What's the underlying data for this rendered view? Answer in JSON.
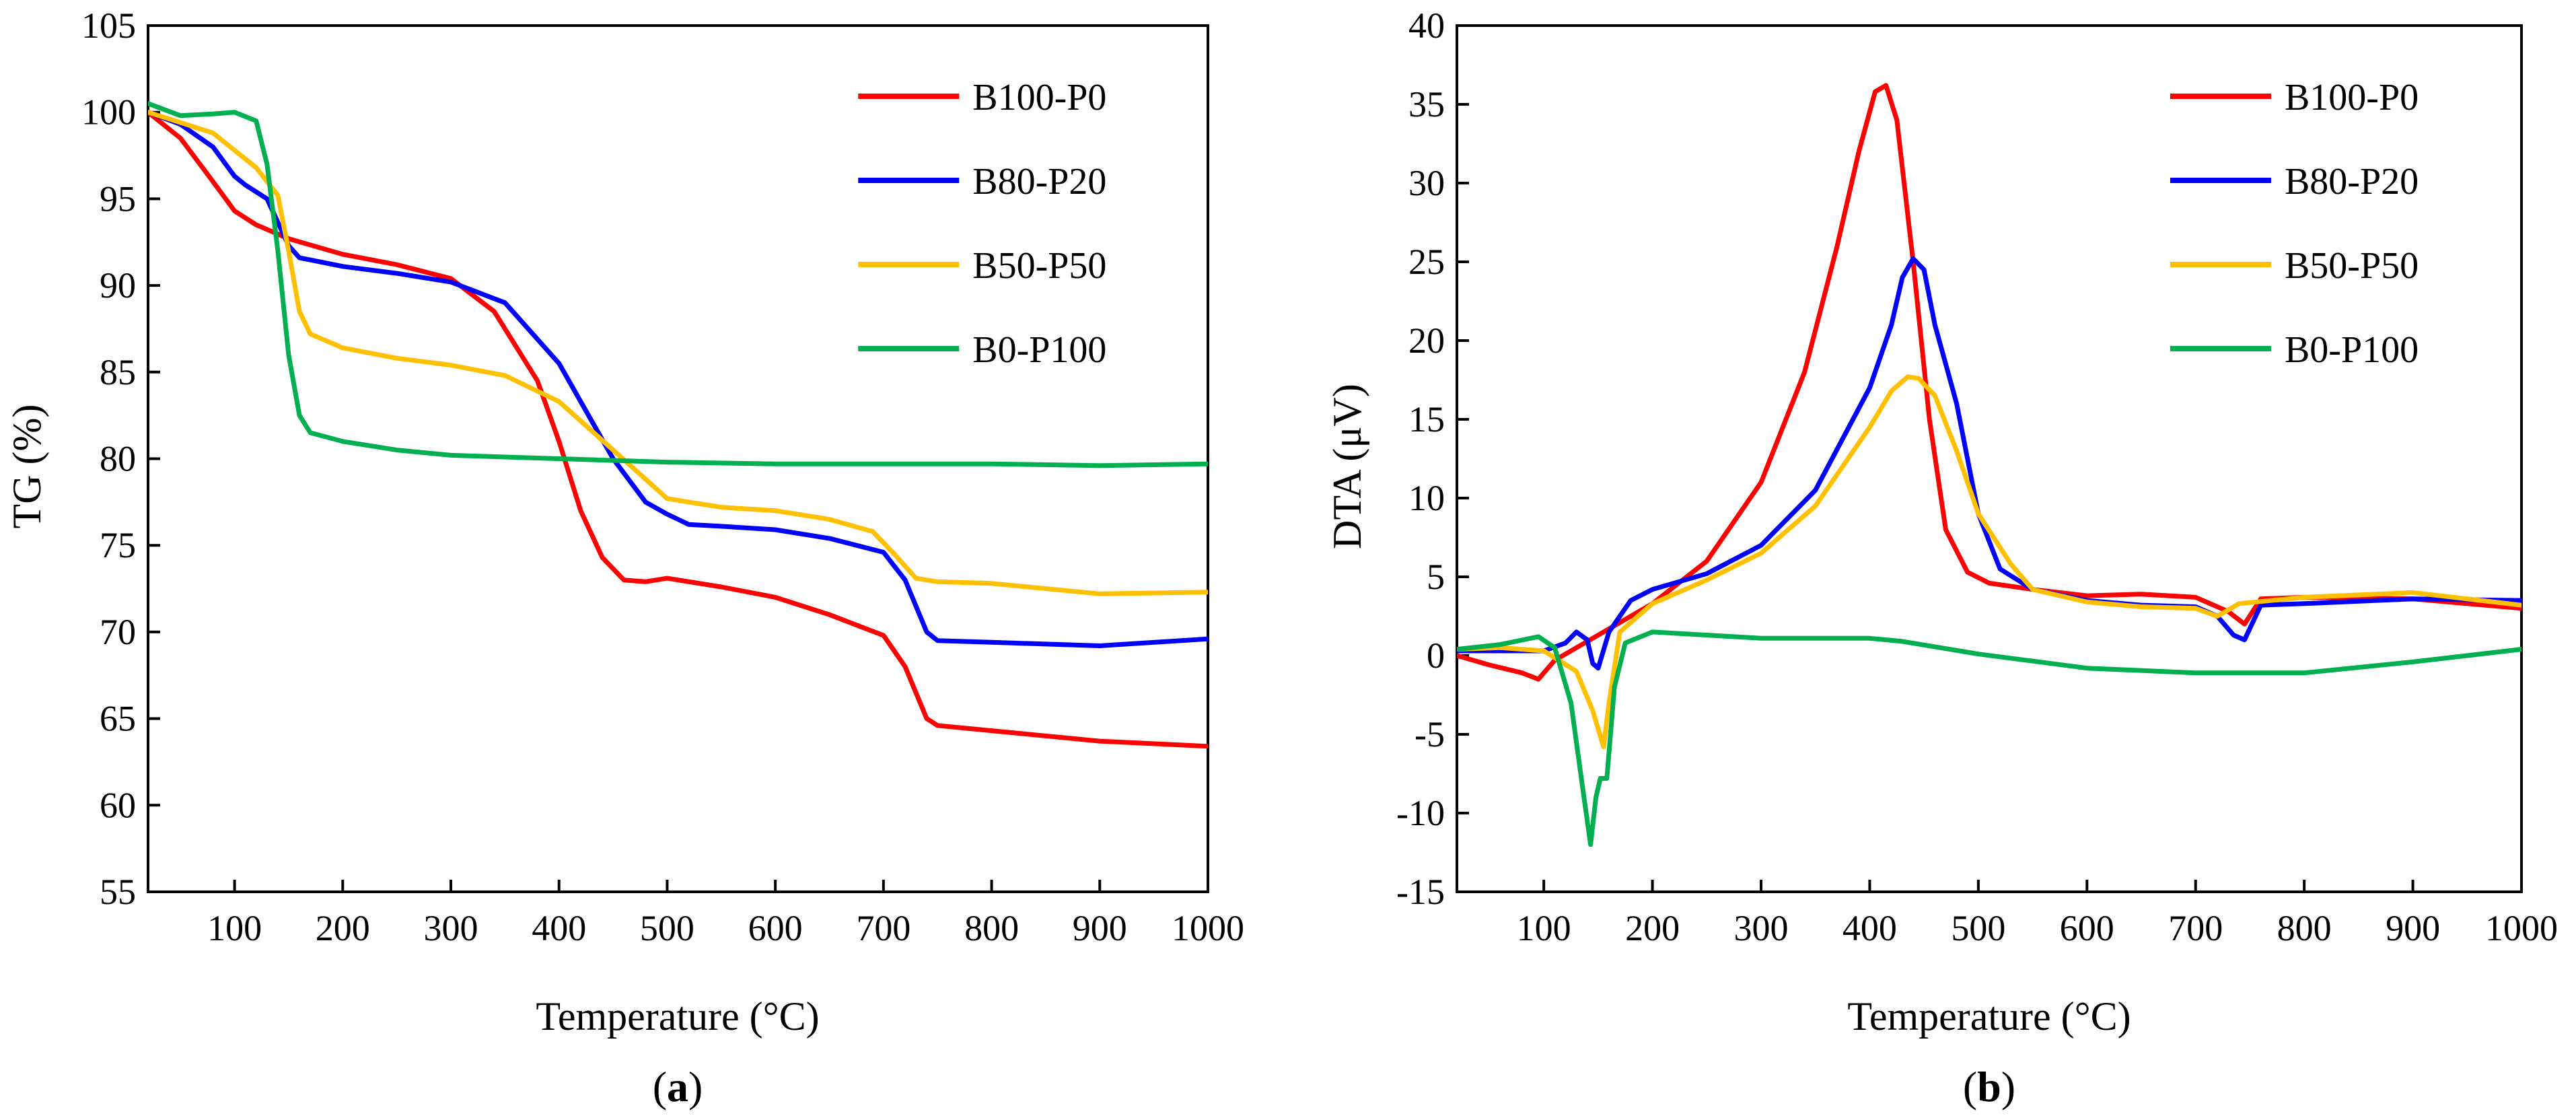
{
  "figure": {
    "panels": [
      {
        "label_open": "(",
        "label_letter": "a",
        "label_close": ")"
      },
      {
        "label_open": "(",
        "label_letter": "b",
        "label_close": ")"
      }
    ]
  },
  "chart_data": [
    {
      "type": "line",
      "title": "",
      "xlabel": "Temperature (°C)",
      "ylabel": "TG (%)",
      "xlim": [
        20,
        1000
      ],
      "ylim": [
        55,
        105
      ],
      "xticks": [
        100,
        200,
        300,
        400,
        500,
        600,
        700,
        800,
        900,
        1000
      ],
      "yticks": [
        55,
        60,
        65,
        70,
        75,
        80,
        85,
        90,
        95,
        100,
        105
      ],
      "grid": false,
      "legend_position": "top-right",
      "series": [
        {
          "name": "B100-P0",
          "color": "#ff0000",
          "x": [
            20,
            50,
            80,
            100,
            120,
            150,
            200,
            250,
            300,
            340,
            380,
            400,
            420,
            440,
            460,
            480,
            500,
            550,
            600,
            650,
            700,
            720,
            740,
            750,
            800,
            900,
            1000
          ],
          "y": [
            100,
            98.5,
            96,
            94.3,
            93.5,
            92.7,
            91.8,
            91.2,
            90.4,
            88.5,
            84.5,
            81,
            77,
            74.3,
            73,
            72.9,
            73.1,
            72.6,
            72,
            71,
            69.8,
            68,
            65,
            64.6,
            64.3,
            63.7,
            63.4
          ]
        },
        {
          "name": "B80-P20",
          "color": "#0000ff",
          "x": [
            20,
            50,
            80,
            100,
            110,
            130,
            150,
            160,
            200,
            250,
            300,
            350,
            400,
            450,
            480,
            500,
            520,
            550,
            600,
            650,
            700,
            720,
            740,
            750,
            800,
            900,
            1000
          ],
          "y": [
            100,
            99.3,
            98,
            96.3,
            95.8,
            95,
            92.3,
            91.6,
            91.1,
            90.7,
            90.2,
            89,
            85.5,
            80,
            77.5,
            76.8,
            76.2,
            76.1,
            75.9,
            75.4,
            74.6,
            73,
            70,
            69.5,
            69.4,
            69.2,
            69.6
          ]
        },
        {
          "name": "B50-P50",
          "color": "#ffc000",
          "x": [
            20,
            50,
            80,
            100,
            120,
            140,
            150,
            160,
            170,
            200,
            250,
            300,
            350,
            400,
            450,
            500,
            550,
            600,
            650,
            690,
            710,
            730,
            750,
            800,
            900,
            1000
          ],
          "y": [
            100,
            99.4,
            98.8,
            97.8,
            96.8,
            95.2,
            92,
            88.5,
            87.2,
            86.4,
            85.8,
            85.4,
            84.8,
            83.3,
            80.5,
            77.7,
            77.2,
            77,
            76.5,
            75.8,
            74.5,
            73.1,
            72.9,
            72.8,
            72.2,
            72.3
          ]
        },
        {
          "name": "B0-P100",
          "color": "#00b050",
          "x": [
            20,
            50,
            80,
            100,
            120,
            130,
            140,
            150,
            160,
            170,
            200,
            250,
            300,
            400,
            500,
            600,
            700,
            800,
            900,
            1000
          ],
          "y": [
            100.5,
            99.8,
            99.9,
            100,
            99.5,
            97,
            92,
            86,
            82.5,
            81.5,
            81,
            80.5,
            80.2,
            80,
            79.8,
            79.7,
            79.7,
            79.7,
            79.6,
            79.7
          ]
        }
      ],
      "legend": [
        "B100-P0",
        "B80-P20",
        "B50-P50",
        "B0-P100"
      ]
    },
    {
      "type": "line",
      "title": "",
      "xlabel": "Temperature (°C)",
      "ylabel": "DTA (μV)",
      "xlim": [
        20,
        1000
      ],
      "ylim": [
        -15,
        40
      ],
      "xticks": [
        100,
        200,
        300,
        400,
        500,
        600,
        700,
        800,
        900,
        1000
      ],
      "yticks": [
        -15,
        -10,
        -5,
        0,
        5,
        10,
        15,
        20,
        25,
        30,
        35,
        40
      ],
      "grid": false,
      "legend_position": "top-right",
      "series": [
        {
          "name": "B100-P0",
          "color": "#ff0000",
          "x": [
            20,
            50,
            80,
            95,
            110,
            150,
            200,
            250,
            300,
            340,
            370,
            390,
            405,
            415,
            425,
            440,
            455,
            470,
            490,
            510,
            550,
            600,
            650,
            700,
            730,
            745,
            760,
            800,
            900,
            1000
          ],
          "y": [
            0,
            -0.6,
            -1.1,
            -1.5,
            -0.3,
            1.3,
            3.3,
            6,
            11,
            18,
            26,
            32,
            35.8,
            36.2,
            34,
            25,
            15,
            8,
            5.3,
            4.6,
            4.2,
            3.8,
            3.9,
            3.7,
            2.8,
            2,
            3.6,
            3.7,
            3.6,
            3
          ]
        },
        {
          "name": "B80-P20",
          "color": "#0000ff",
          "x": [
            20,
            60,
            100,
            120,
            130,
            140,
            145,
            150,
            160,
            180,
            200,
            250,
            300,
            350,
            400,
            420,
            430,
            440,
            450,
            460,
            480,
            500,
            520,
            550,
            600,
            650,
            700,
            720,
            735,
            745,
            760,
            800,
            900,
            1000
          ],
          "y": [
            0.3,
            0.3,
            0.3,
            0.8,
            1.5,
            1,
            -0.5,
            -0.8,
            1.5,
            3.5,
            4.2,
            5.2,
            7,
            10.5,
            17,
            21,
            24,
            25.2,
            24.5,
            21,
            16,
            9,
            5.5,
            4.2,
            3.5,
            3.2,
            3.1,
            2.5,
            1.3,
            1,
            3.2,
            3.3,
            3.6,
            3.5
          ]
        },
        {
          "name": "B50-P50",
          "color": "#ffc000",
          "x": [
            20,
            60,
            100,
            130,
            145,
            155,
            160,
            170,
            200,
            250,
            300,
            350,
            400,
            420,
            435,
            445,
            460,
            480,
            500,
            530,
            550,
            600,
            650,
            700,
            720,
            740,
            800,
            900,
            1000
          ],
          "y": [
            0.4,
            0.5,
            0.3,
            -1,
            -3.5,
            -5.8,
            -3,
            1.5,
            3.3,
            4.8,
            6.5,
            9.5,
            14.5,
            16.8,
            17.7,
            17.6,
            16.5,
            13,
            9,
            5.8,
            4.2,
            3.4,
            3.1,
            3,
            2.5,
            3.3,
            3.7,
            4,
            3.2
          ]
        },
        {
          "name": "B0-P100",
          "color": "#00b050",
          "x": [
            20,
            60,
            95,
            110,
            125,
            135,
            143,
            148,
            152,
            158,
            165,
            175,
            200,
            300,
            400,
            430,
            500,
            600,
            700,
            800,
            900,
            1000
          ],
          "y": [
            0.4,
            0.7,
            1.2,
            0.5,
            -3,
            -8,
            -12,
            -9,
            -7.8,
            -7.8,
            -2,
            0.8,
            1.5,
            1.1,
            1.1,
            0.9,
            0.1,
            -0.8,
            -1.1,
            -1.1,
            -0.4,
            0.4
          ]
        }
      ],
      "legend": [
        "B100-P0",
        "B80-P20",
        "B50-P50",
        "B0-P100"
      ]
    }
  ]
}
